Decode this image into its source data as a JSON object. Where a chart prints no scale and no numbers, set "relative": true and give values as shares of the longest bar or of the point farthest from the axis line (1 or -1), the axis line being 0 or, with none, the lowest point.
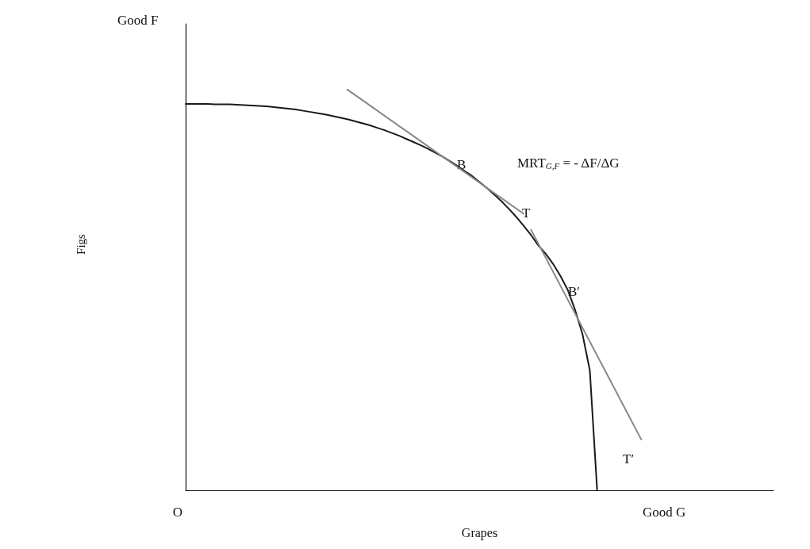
{
  "chart_data": {
    "type": "line",
    "relative": true,
    "xlabel": "Grapes",
    "ylim": [
      0,
      1.164
    ],
    "marker": "none",
    "line_style": "solid",
    "categories": [
      null,
      null,
      null,
      null,
      null,
      null,
      null,
      null,
      null,
      null,
      null,
      null,
      null,
      null,
      null,
      null,
      null,
      null,
      null,
      null,
      null,
      null,
      null,
      null,
      null,
      null,
      null,
      null,
      null,
      null,
      null,
      null,
      null,
      null,
      null,
      null,
      null,
      null,
      null,
      null,
      null,
      null,
      null,
      null,
      null,
      null,
      null,
      null,
      null,
      null,
      null,
      null,
      null,
      null,
      null,
      null,
      null,
      null,
      null,
      null,
      null,
      null,
      null,
      null,
      null,
      null,
      null,
      null,
      null,
      null,
      null,
      null,
      null,
      null,
      null,
      null,
      null,
      null,
      null,
      null,
      null
    ],
    "series": [
      {
        "color": "#1a1a1a",
        "values": [
          0.964,
          0.964,
          0.964,
          0.964,
          0.963,
          0.963,
          0.963,
          0.962,
          0.961,
          0.96,
          0.959,
          0.958,
          0.956,
          0.954,
          0.952,
          0.95,
          0.947,
          0.944,
          0.941,
          0.938,
          0.934,
          0.93,
          0.926,
          0.921,
          0.916,
          0.911,
          0.905,
          0.899,
          0.892,
          0.885,
          0.877,
          0.869,
          0.861,
          0.852,
          0.842,
          0.832,
          0.821,
          0.809,
          0.796,
          0.784,
          0.769,
          0.754,
          0.738,
          0.721,
          0.702,
          0.682,
          0.66,
          0.637,
          0.611,
          0.59,
          0.565,
          0.535,
          0.5,
          0.45,
          0.39,
          0.3,
          0,
          null,
          null,
          null,
          null,
          null,
          null,
          null,
          null,
          null,
          null,
          null,
          null,
          null,
          null,
          null,
          null,
          null,
          null,
          null,
          null,
          null,
          null,
          null,
          null
        ]
      },
      {
        "color": "#888888",
        "values": [
          null,
          null,
          null,
          null,
          null,
          null,
          null,
          null,
          null,
          null,
          null,
          null,
          null,
          null,
          null,
          null,
          null,
          null,
          null,
          null,
          null,
          null,
          1.0,
          null,
          null,
          null,
          null,
          null,
          null,
          null,
          null,
          null,
          null,
          null,
          null,
          null,
          null,
          null,
          null,
          null,
          null,
          null,
          null,
          null,
          null,
          null,
          0.69,
          null,
          null,
          null,
          null,
          null,
          null,
          null,
          null,
          null,
          null,
          null,
          null,
          null,
          null,
          null,
          null,
          null,
          null,
          null,
          null,
          null,
          null,
          null,
          null,
          null,
          null,
          null,
          null,
          null,
          null,
          null,
          null,
          null,
          null
        ]
      },
      {
        "color": "#888888",
        "values": [
          null,
          null,
          null,
          null,
          null,
          null,
          null,
          null,
          null,
          null,
          null,
          null,
          null,
          null,
          null,
          null,
          null,
          null,
          null,
          null,
          null,
          null,
          null,
          null,
          null,
          null,
          null,
          null,
          null,
          null,
          null,
          null,
          null,
          null,
          null,
          null,
          null,
          null,
          null,
          null,
          null,
          null,
          null,
          null,
          null,
          null,
          null,
          0.65,
          null,
          null,
          null,
          null,
          null,
          null,
          null,
          null,
          null,
          null,
          null,
          null,
          null,
          null,
          0.127,
          null,
          null,
          null,
          null,
          null,
          null,
          null,
          null,
          null,
          null,
          null,
          null,
          null,
          null,
          null,
          null,
          null,
          null
        ]
      }
    ],
    "annotations": [
      "B",
      "T",
      "B′",
      "T′",
      "MRT$_{G,F}$ = - ΔF/ΔG",
      "O",
      "Good F",
      "Good G",
      "Figs"
    ]
  }
}
